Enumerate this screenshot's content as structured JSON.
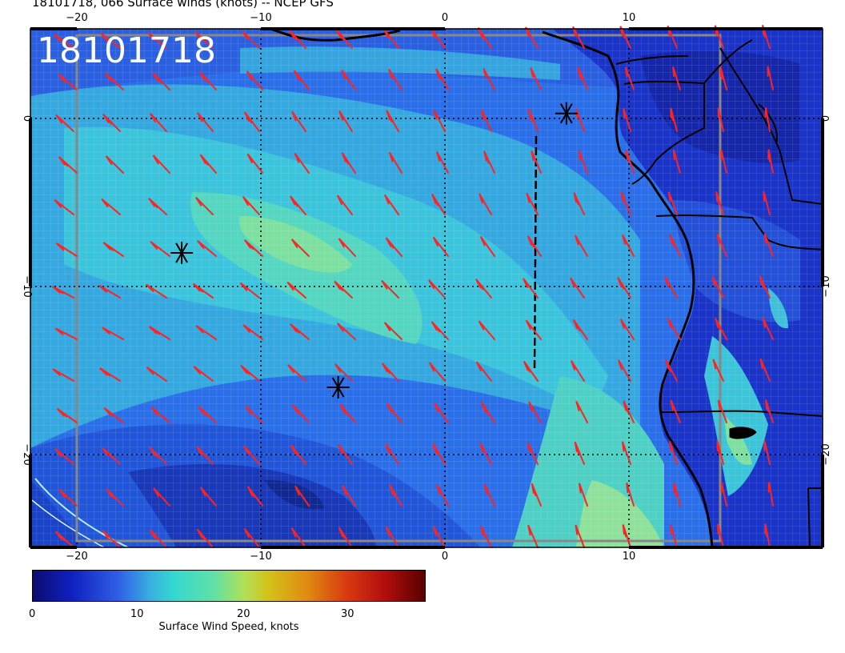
{
  "title": "18101718, 066 Surface winds (knots) -- NCEP GFS",
  "stamp": "18101718",
  "axes": {
    "lon_ticks": [
      "−20",
      "−10",
      "0",
      "10"
    ],
    "lat_ticks": [
      "0",
      "−10",
      "−20"
    ]
  },
  "colorbar": {
    "labels": [
      "0",
      "10",
      "20",
      "30"
    ],
    "title": "Surface Wind Speed, knots",
    "range": [
      0,
      37
    ]
  },
  "colors": {
    "barb": "#ff2222",
    "ocean_low": "#1a40d8",
    "ocean_mid": "#3ab0d8",
    "land": "#1830c8"
  },
  "markers": [
    {
      "name": "star-marker-1",
      "lon": -14.3,
      "lat": -8.0
    },
    {
      "name": "star-marker-2",
      "lon": -5.8,
      "lat": -16.0
    },
    {
      "name": "star-marker-3",
      "lon": 6.6,
      "lat": 0.3
    }
  ]
}
